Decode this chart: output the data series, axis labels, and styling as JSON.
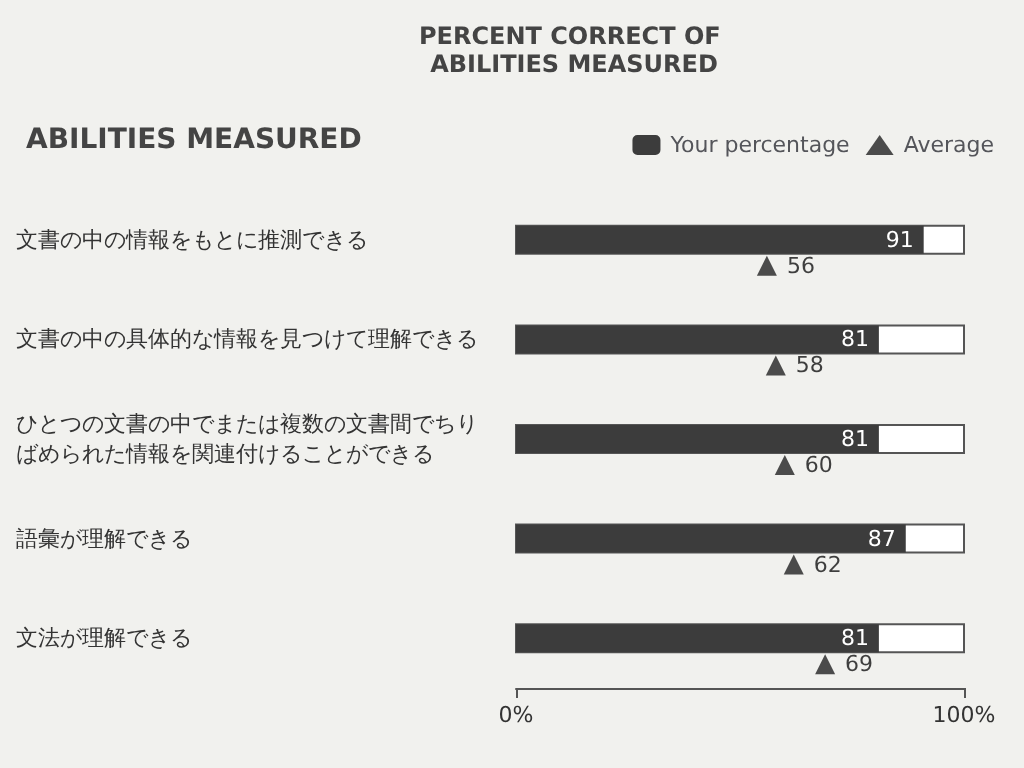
{
  "chart_data": {
    "type": "bar",
    "orientation": "horizontal",
    "title": "PERCENT CORRECT OF ABILITIES MEASURED",
    "ylabel": "ABILITIES MEASURED",
    "categories": [
      "文書の中の情報をもとに推測できる",
      "文書の中の具体的な情報を見つけて理解できる",
      "ひとつの文書の中でまたは複数の文書間でちりばめられた情報を関連付けることができる",
      "語彙が理解できる",
      "文法が理解できる"
    ],
    "series": [
      {
        "name": "Your percentage",
        "color": "#3c3c3c",
        "values": [
          91,
          81,
          81,
          87,
          81
        ]
      },
      {
        "name": "Average",
        "type": "scatter",
        "color": "#222222",
        "marker": "triangle",
        "values": [
          56,
          58,
          60,
          62,
          69
        ]
      }
    ],
    "xlim": [
      0,
      100
    ],
    "xticks": [
      {
        "value": 0,
        "label": "0%"
      },
      {
        "value": 100,
        "label": "100%"
      }
    ],
    "data_labels": true,
    "grid": false,
    "legend": "top right"
  }
}
